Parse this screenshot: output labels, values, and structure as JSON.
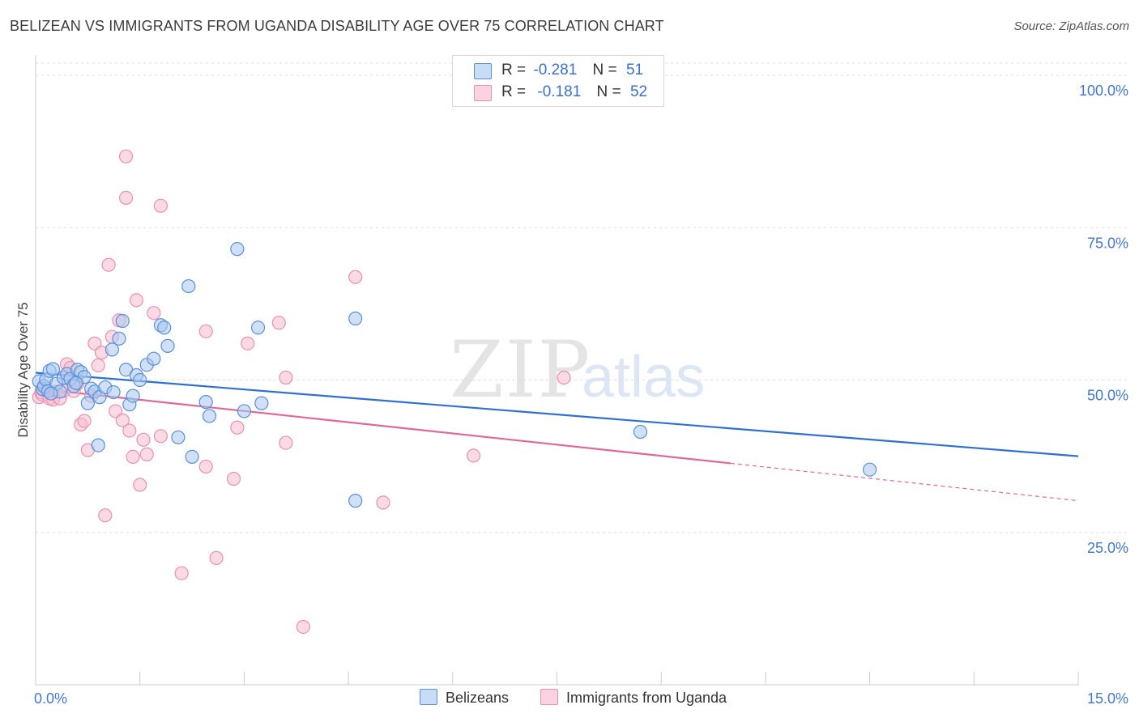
{
  "header": {
    "title": "BELIZEAN VS IMMIGRANTS FROM UGANDA DISABILITY AGE OVER 75 CORRELATION CHART",
    "source": "Source: ZipAtlas.com"
  },
  "watermark": {
    "zip": "ZIP",
    "atlas": "atlas"
  },
  "colors": {
    "blue_fill": "#aac8f0",
    "blue_stroke": "#5a8fd8",
    "blue_line": "#3070d0",
    "pink_fill": "#f8bcd0",
    "pink_stroke": "#e890b0",
    "pink_line": "#e06898",
    "tick_text": "#4477cc"
  },
  "legend": {
    "rows": [
      {
        "r_label": "R =",
        "r_value": "-0.281",
        "n_label": "N =",
        "n_value": "51"
      },
      {
        "r_label": "R =",
        "r_value": "-0.181",
        "n_label": "N =",
        "n_value": "52"
      }
    ]
  },
  "bottom_legend": {
    "series1": "Belizeans",
    "series2": "Immigrants from Uganda"
  },
  "chart_data": {
    "type": "scatter",
    "title": "BELIZEAN VS IMMIGRANTS FROM UGANDA DISABILITY AGE OVER 75 CORRELATION CHART",
    "xlabel": "",
    "ylabel": "Disability Age Over 75",
    "xlim": [
      0,
      15
    ],
    "ylim": [
      0,
      102
    ],
    "x_tick_labels": [
      {
        "value": 0,
        "label": "0.0%"
      },
      {
        "value": 15,
        "label": "15.0%"
      }
    ],
    "y_tick_labels": [
      {
        "value": 100,
        "label": "100.0%"
      },
      {
        "value": 75,
        "label": "75.0%"
      },
      {
        "value": 50,
        "label": "50.0%"
      },
      {
        "value": 25,
        "label": "25.0%"
      }
    ],
    "x_minor_ticks": [
      1.5,
      3.0,
      4.5,
      6.0,
      7.5,
      9.0,
      10.5,
      12.0,
      13.5,
      15.0
    ],
    "y_gridlines": [
      100,
      75,
      50,
      25
    ],
    "series": [
      {
        "name": "Belizeans",
        "R": -0.281,
        "N": 51,
        "trend": {
          "x0": 0,
          "y0": 51.2,
          "x1": 15,
          "y1": 37.5,
          "solid_until": 15
        },
        "points": [
          [
            0.05,
            49.8
          ],
          [
            0.1,
            48.5
          ],
          [
            0.12,
            49.0
          ],
          [
            0.15,
            50.1
          ],
          [
            0.18,
            48.2
          ],
          [
            0.2,
            51.5
          ],
          [
            0.25,
            51.8
          ],
          [
            0.3,
            49.4
          ],
          [
            0.35,
            48.1
          ],
          [
            0.4,
            50.4
          ],
          [
            0.45,
            51.0
          ],
          [
            0.5,
            50.2
          ],
          [
            0.55,
            49.0
          ],
          [
            0.6,
            51.7
          ],
          [
            0.65,
            51.3
          ],
          [
            0.7,
            50.5
          ],
          [
            0.75,
            46.2
          ],
          [
            0.8,
            48.6
          ],
          [
            0.85,
            48.1
          ],
          [
            0.9,
            39.3
          ],
          [
            0.92,
            47.2
          ],
          [
            1.0,
            48.8
          ],
          [
            1.1,
            55.0
          ],
          [
            1.2,
            56.8
          ],
          [
            1.25,
            59.7
          ],
          [
            1.3,
            51.7
          ],
          [
            1.35,
            46.0
          ],
          [
            1.4,
            47.4
          ],
          [
            1.45,
            50.8
          ],
          [
            1.5,
            50.0
          ],
          [
            1.6,
            52.5
          ],
          [
            1.7,
            53.5
          ],
          [
            1.8,
            59.0
          ],
          [
            1.85,
            58.6
          ],
          [
            1.9,
            55.6
          ],
          [
            2.05,
            40.6
          ],
          [
            2.2,
            65.4
          ],
          [
            2.25,
            37.4
          ],
          [
            2.45,
            46.4
          ],
          [
            2.5,
            44.1
          ],
          [
            2.9,
            71.5
          ],
          [
            3.0,
            44.9
          ],
          [
            3.2,
            58.6
          ],
          [
            3.25,
            46.2
          ],
          [
            4.6,
            60.1
          ],
          [
            4.6,
            30.2
          ],
          [
            8.7,
            41.5
          ],
          [
            12.0,
            35.3
          ],
          [
            0.22,
            47.8
          ],
          [
            0.58,
            49.5
          ],
          [
            1.12,
            48.0
          ]
        ]
      },
      {
        "name": "Immigrants from Uganda",
        "R": -0.181,
        "N": 52,
        "trend": {
          "x0": 0,
          "y0": 48.6,
          "x1": 15,
          "y1": 30.2,
          "solid_until": 10.0
        },
        "points": [
          [
            0.05,
            47.2
          ],
          [
            0.08,
            48.0
          ],
          [
            0.1,
            47.6
          ],
          [
            0.15,
            48.6
          ],
          [
            0.2,
            47.0
          ],
          [
            0.25,
            46.8
          ],
          [
            0.3,
            48.1
          ],
          [
            0.35,
            47.0
          ],
          [
            0.4,
            48.2
          ],
          [
            0.45,
            52.6
          ],
          [
            0.5,
            52.0
          ],
          [
            0.55,
            48.2
          ],
          [
            0.6,
            49.4
          ],
          [
            0.65,
            42.7
          ],
          [
            0.7,
            43.3
          ],
          [
            0.75,
            38.5
          ],
          [
            0.8,
            47.4
          ],
          [
            0.85,
            56.0
          ],
          [
            0.9,
            52.4
          ],
          [
            0.95,
            54.5
          ],
          [
            1.0,
            27.8
          ],
          [
            1.05,
            68.9
          ],
          [
            1.1,
            57.1
          ],
          [
            1.15,
            44.9
          ],
          [
            1.2,
            59.8
          ],
          [
            1.25,
            43.4
          ],
          [
            1.3,
            79.9
          ],
          [
            1.3,
            86.7
          ],
          [
            1.35,
            41.7
          ],
          [
            1.4,
            37.4
          ],
          [
            1.45,
            63.1
          ],
          [
            1.5,
            32.8
          ],
          [
            1.55,
            40.2
          ],
          [
            1.6,
            37.8
          ],
          [
            1.7,
            61.0
          ],
          [
            1.8,
            40.8
          ],
          [
            1.8,
            78.6
          ],
          [
            2.1,
            18.3
          ],
          [
            2.45,
            58.0
          ],
          [
            2.45,
            35.8
          ],
          [
            2.6,
            20.8
          ],
          [
            2.85,
            33.8
          ],
          [
            2.9,
            42.2
          ],
          [
            3.05,
            56.0
          ],
          [
            3.5,
            59.4
          ],
          [
            3.6,
            50.4
          ],
          [
            3.6,
            39.7
          ],
          [
            3.85,
            9.5
          ],
          [
            4.6,
            66.9
          ],
          [
            5.0,
            29.9
          ],
          [
            6.3,
            37.6
          ],
          [
            7.6,
            50.4
          ]
        ]
      }
    ]
  }
}
